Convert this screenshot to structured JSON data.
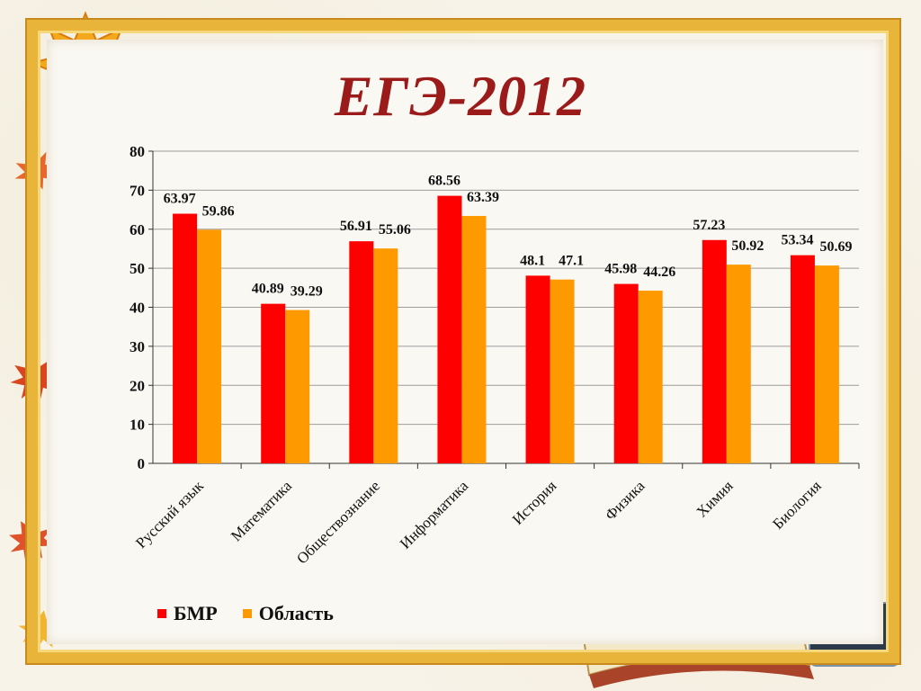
{
  "title": "ЕГЭ-2012",
  "colors": {
    "bmr": "#ff0000",
    "region": "#ff9900",
    "title": "#9b1b1b"
  },
  "legend": [
    {
      "name": "БМР",
      "color": "#ff0000"
    },
    {
      "name": "Область",
      "color": "#ff9900"
    }
  ],
  "chart_data": {
    "type": "bar",
    "title": "ЕГЭ-2012",
    "categories": [
      "Русский язык",
      "Математика",
      "Обществознание",
      "Информатика",
      "История",
      "Физика",
      "Химия",
      "Биология"
    ],
    "series": [
      {
        "name": "БМР",
        "values": [
          63.97,
          40.89,
          56.91,
          68.56,
          48.1,
          45.98,
          57.23,
          53.34
        ]
      },
      {
        "name": "Область",
        "values": [
          59.86,
          39.29,
          55.06,
          63.39,
          47.1,
          44.26,
          50.92,
          50.69
        ]
      }
    ],
    "value_labels": [
      [
        "63.97",
        "40.89",
        "56.91",
        "68.56",
        "48.1",
        "45.98",
        "57.23",
        "53.34"
      ],
      [
        "59.86",
        "39.29",
        "55.06",
        "63.39",
        "47.1",
        "44.26",
        "50.92",
        "50.69"
      ]
    ],
    "ylim": [
      0,
      80
    ],
    "yticks": [
      "0",
      "10",
      "20",
      "30",
      "40",
      "50",
      "60",
      "70",
      "80"
    ],
    "grid": true,
    "legend_position": "bottom-left",
    "xlabel": "",
    "ylabel": ""
  }
}
